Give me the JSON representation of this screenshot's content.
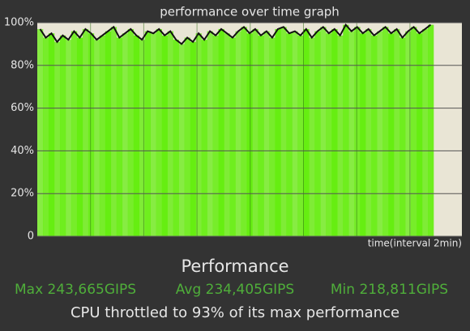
{
  "chart_data": {
    "type": "bar",
    "title": "performance over time graph",
    "x_label": "time(interval 2min)",
    "values": [
      97,
      93,
      95,
      91,
      94,
      92,
      96,
      93,
      97,
      95,
      92,
      94,
      96,
      98,
      93,
      95,
      97,
      94,
      92,
      96,
      95,
      97,
      94,
      96,
      92,
      90,
      93,
      91,
      95,
      92,
      96,
      94,
      97,
      95,
      93,
      96,
      98,
      95,
      97,
      94,
      96,
      93,
      97,
      98,
      95,
      96,
      94,
      97,
      93,
      96,
      98,
      95,
      97,
      94,
      99,
      96,
      98,
      95,
      97,
      94,
      96,
      98,
      95,
      97,
      93,
      96,
      98,
      95,
      97,
      99
    ],
    "color": "#66ee11",
    "line_color": "#111111",
    "ylim": [
      0,
      100
    ],
    "yticks": [
      0,
      {
        "value": 20,
        "label": "20%"
      },
      {
        "value": 40,
        "label": "40%"
      },
      {
        "value": 60,
        "label": "60%"
      },
      {
        "value": 80,
        "label": "80%"
      },
      {
        "value": 100,
        "label": "100%"
      }
    ],
    "grid": true
  },
  "summary": {
    "title": "Performance",
    "max": "Max 243,665GIPS",
    "avg": "Avg 234,405GIPS",
    "min": "Min 218,811GIPS",
    "note": "CPU throttled to 93% of its max performance"
  }
}
